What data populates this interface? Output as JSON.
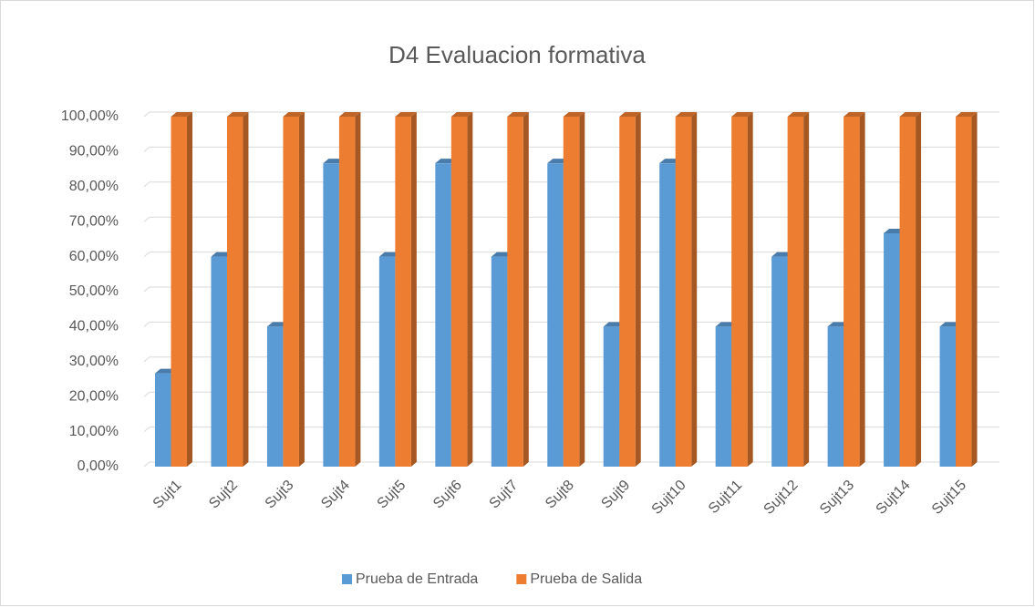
{
  "chart_data": {
    "type": "bar",
    "title": "D4 Evaluacion formativa",
    "categories": [
      "Sujt1",
      "Sujt2",
      "Sujt3",
      "Sujt4",
      "Sujt5",
      "Sujt6",
      "Sujt7",
      "Sujt8",
      "Sujt9",
      "Sujt10",
      "Sujt11",
      "Sujt12",
      "Sujt13",
      "Sujt14",
      "Sujt15"
    ],
    "series": [
      {
        "name": "Prueba de Entrada",
        "color": "#5b9bd5",
        "values": [
          26.67,
          60,
          40,
          86.67,
          60,
          86.67,
          60,
          86.67,
          40,
          86.67,
          40,
          60,
          40,
          66.67,
          40
        ]
      },
      {
        "name": "Prueba de Salida",
        "color": "#ed7d31",
        "values": [
          100,
          100,
          100,
          100,
          100,
          100,
          100,
          100,
          100,
          100,
          100,
          100,
          100,
          100,
          100
        ]
      }
    ],
    "ylim": [
      0,
      100
    ],
    "yticks": [
      {
        "value": 0,
        "label": "0,00%"
      },
      {
        "value": 10,
        "label": "10,00%"
      },
      {
        "value": 20,
        "label": "20,00%"
      },
      {
        "value": 30,
        "label": "30,00%"
      },
      {
        "value": 40,
        "label": "40,00%"
      },
      {
        "value": 50,
        "label": "50,00%"
      },
      {
        "value": 60,
        "label": "60,00%"
      },
      {
        "value": 70,
        "label": "70,00%"
      },
      {
        "value": 80,
        "label": "80,00%"
      },
      {
        "value": 90,
        "label": "90,00%"
      },
      {
        "value": 100,
        "label": "100,00%"
      }
    ],
    "grid": true,
    "legend": "bottom"
  }
}
